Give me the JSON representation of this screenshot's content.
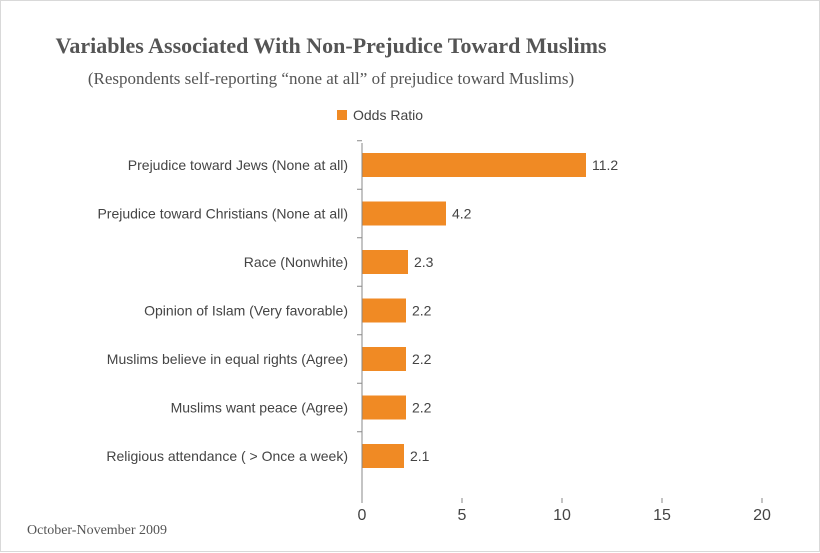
{
  "colors": {
    "bar": "#f08a24",
    "axis": "#888888",
    "text": "#444444"
  },
  "footer": {
    "date": "October-November 2009"
  },
  "chart_data": {
    "type": "bar",
    "orientation": "horizontal",
    "title": "Variables Associated With Non-Prejudice Toward Muslims",
    "subtitle": "(Respondents self-reporting “none at all” of prejudice toward Muslims)",
    "legend_position": "top",
    "grid": false,
    "categories": [
      "Prejudice toward Jews (None at all)",
      "Prejudice toward Christians (None at all)",
      "Race (Nonwhite)",
      "Opinion of Islam (Very favorable)",
      "Muslims believe in equal rights (Agree)",
      "Muslims want peace (Agree)",
      "Religious attendance ( > Once a week)"
    ],
    "series": [
      {
        "name": "Odds Ratio",
        "values": [
          11.2,
          4.2,
          2.3,
          2.2,
          2.2,
          2.2,
          2.1
        ],
        "labels": [
          "11.2",
          "4.2",
          "2.3",
          "2.2",
          "2.2",
          "2.2",
          "2.1"
        ]
      }
    ],
    "xlim": [
      0,
      20
    ],
    "xticks": [
      0,
      5,
      10,
      15,
      20
    ],
    "xtick_labels": [
      "0",
      "5",
      "10",
      "15",
      "20"
    ],
    "xlabel": "",
    "ylabel": ""
  }
}
